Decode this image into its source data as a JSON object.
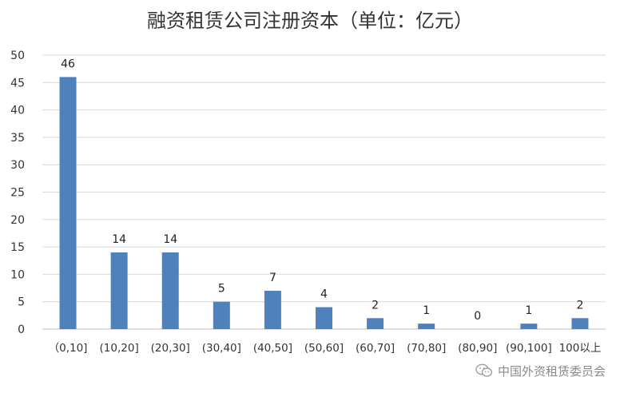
{
  "chart_data": {
    "type": "bar",
    "title": "融资租赁公司注册资本（单位：亿元）",
    "categories": [
      "（0,10]",
      "(10,20]",
      "(20,30]",
      "(30,40]",
      "(40,50]",
      "(50,60]",
      "(60,70]",
      "(70,80]",
      "(80,90]",
      "(90,100]",
      "100以上"
    ],
    "values": [
      46,
      14,
      14,
      5,
      7,
      4,
      2,
      1,
      0,
      1,
      2
    ],
    "data_labels": [
      "46",
      "14",
      "14",
      "5",
      "7",
      "4",
      "2",
      "1",
      "0",
      "1",
      "2"
    ],
    "ylim": [
      0,
      50
    ],
    "yticks": [
      "0",
      "5",
      "10",
      "15",
      "20",
      "25",
      "30",
      "35",
      "40",
      "45",
      "50"
    ],
    "xlabel": "",
    "ylabel": "",
    "grid": true,
    "bar_color": "#4f81bd",
    "grid_color": "#d9d9d9"
  },
  "watermark": {
    "icon": "wechat-icon",
    "text": "中国外资租赁委员会"
  }
}
